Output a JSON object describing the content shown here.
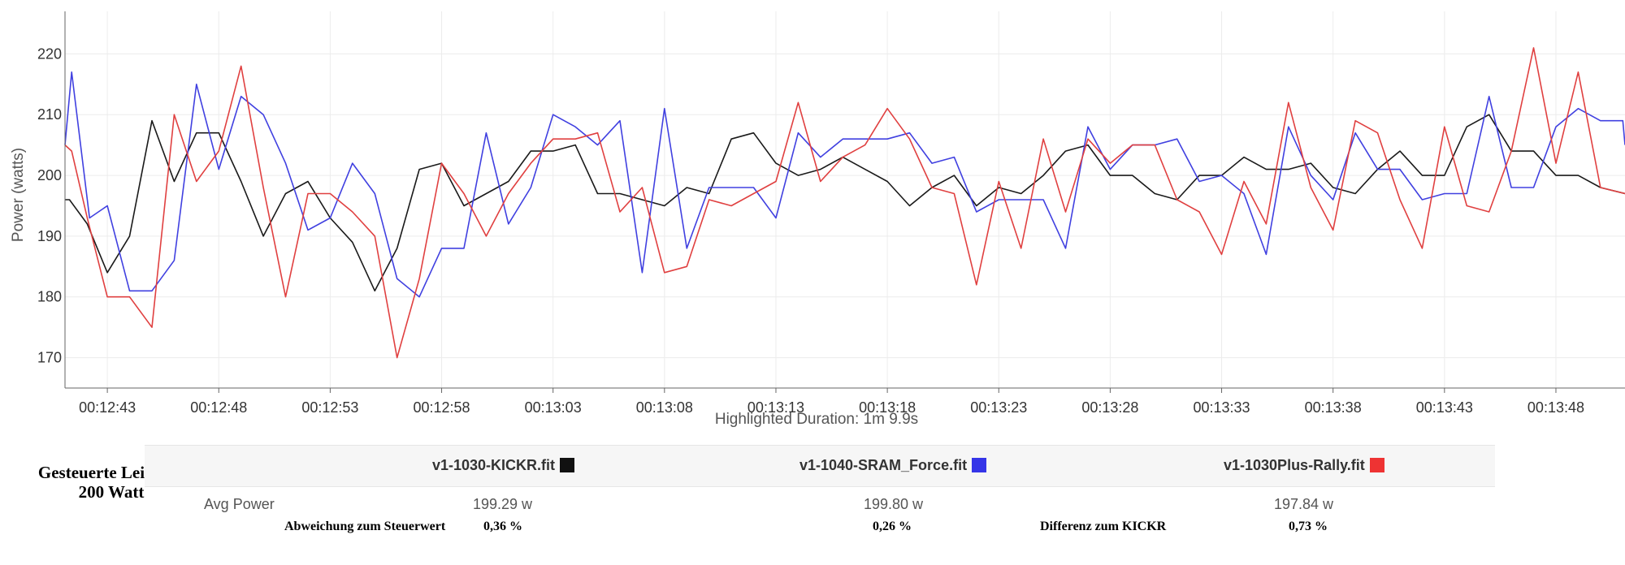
{
  "chart_data": {
    "type": "line",
    "ylabel": "Power (watts)",
    "xlabel": "Highlighted Duration: 1m 9.9s",
    "xlim": [
      764.5,
      834.5
    ],
    "ylim": [
      165,
      227
    ],
    "y_ticks": [
      170,
      180,
      190,
      200,
      210,
      220
    ],
    "x_ticks": [
      {
        "t": 766.4,
        "label": "00:12:43"
      },
      {
        "t": 771.4,
        "label": "00:12:48"
      },
      {
        "t": 776.4,
        "label": "00:12:53"
      },
      {
        "t": 781.4,
        "label": "00:12:58"
      },
      {
        "t": 786.4,
        "label": "00:13:03"
      },
      {
        "t": 791.4,
        "label": "00:13:08"
      },
      {
        "t": 796.4,
        "label": "00:13:13"
      },
      {
        "t": 801.4,
        "label": "00:13:18"
      },
      {
        "t": 806.4,
        "label": "00:13:23"
      },
      {
        "t": 811.4,
        "label": "00:13:28"
      },
      {
        "t": 816.4,
        "label": "00:13:33"
      },
      {
        "t": 821.4,
        "label": "00:13:38"
      },
      {
        "t": 826.4,
        "label": "00:13:43"
      },
      {
        "t": 831.4,
        "label": "00:13:48"
      }
    ],
    "grid": true,
    "series": [
      {
        "name": "v1-1030-KICKR.fit",
        "color": "#1a1a1a",
        "points": [
          [
            764.5,
            196
          ],
          [
            764.7,
            196
          ],
          [
            765.5,
            192
          ],
          [
            766.4,
            184
          ],
          [
            767.4,
            190
          ],
          [
            768.4,
            209
          ],
          [
            769.4,
            199
          ],
          [
            770.4,
            207
          ],
          [
            771.4,
            207
          ],
          [
            772.4,
            199
          ],
          [
            773.4,
            190
          ],
          [
            774.4,
            197
          ],
          [
            775.4,
            199
          ],
          [
            776.4,
            193
          ],
          [
            777.4,
            189
          ],
          [
            778.4,
            181
          ],
          [
            779.4,
            188
          ],
          [
            780.4,
            201
          ],
          [
            781.4,
            202
          ],
          [
            782.4,
            195
          ],
          [
            783.4,
            197
          ],
          [
            784.4,
            199
          ],
          [
            785.4,
            204
          ],
          [
            786.4,
            204
          ],
          [
            787.4,
            205
          ],
          [
            788.4,
            197
          ],
          [
            789.4,
            197
          ],
          [
            790.4,
            196
          ],
          [
            791.4,
            195
          ],
          [
            792.4,
            198
          ],
          [
            793.4,
            197
          ],
          [
            794.4,
            206
          ],
          [
            795.4,
            207
          ],
          [
            796.4,
            202
          ],
          [
            797.4,
            200
          ],
          [
            798.4,
            201
          ],
          [
            799.4,
            203
          ],
          [
            800.4,
            201
          ],
          [
            801.4,
            199
          ],
          [
            802.4,
            195
          ],
          [
            803.4,
            198
          ],
          [
            804.4,
            200
          ],
          [
            805.4,
            195
          ],
          [
            806.4,
            198
          ],
          [
            807.4,
            197
          ],
          [
            808.4,
            200
          ],
          [
            809.4,
            204
          ],
          [
            810.4,
            205
          ],
          [
            811.4,
            200
          ],
          [
            812.4,
            200
          ],
          [
            813.4,
            197
          ],
          [
            814.4,
            196
          ],
          [
            815.4,
            200
          ],
          [
            816.4,
            200
          ],
          [
            817.4,
            203
          ],
          [
            818.4,
            201
          ],
          [
            819.4,
            201
          ],
          [
            820.4,
            202
          ],
          [
            821.4,
            198
          ],
          [
            822.4,
            197
          ],
          [
            823.4,
            201
          ],
          [
            824.4,
            204
          ],
          [
            825.4,
            200
          ],
          [
            826.4,
            200
          ],
          [
            827.4,
            208
          ],
          [
            828.4,
            210
          ],
          [
            829.4,
            204
          ],
          [
            830.4,
            204
          ],
          [
            831.4,
            200
          ],
          [
            832.4,
            200
          ],
          [
            833.4,
            198
          ],
          [
            834.5,
            197
          ]
        ]
      },
      {
        "name": "v1-1040-SRAM_Force.fit",
        "color": "#4040e0",
        "points": [
          [
            764.5,
            205
          ],
          [
            764.8,
            217
          ],
          [
            765.6,
            193
          ],
          [
            766.4,
            195
          ],
          [
            767.4,
            181
          ],
          [
            768.4,
            181
          ],
          [
            769.4,
            186
          ],
          [
            770.4,
            215
          ],
          [
            771.4,
            201
          ],
          [
            772.4,
            213
          ],
          [
            773.4,
            210
          ],
          [
            774.4,
            202
          ],
          [
            775.4,
            191
          ],
          [
            776.4,
            193
          ],
          [
            777.4,
            202
          ],
          [
            778.4,
            197
          ],
          [
            779.4,
            183
          ],
          [
            780.4,
            180
          ],
          [
            781.4,
            188
          ],
          [
            782.4,
            188
          ],
          [
            783.4,
            207
          ],
          [
            784.4,
            192
          ],
          [
            785.4,
            198
          ],
          [
            786.4,
            210
          ],
          [
            787.4,
            208
          ],
          [
            788.4,
            205
          ],
          [
            789.4,
            209
          ],
          [
            790.4,
            184
          ],
          [
            791.4,
            211
          ],
          [
            792.4,
            188
          ],
          [
            793.4,
            198
          ],
          [
            794.4,
            198
          ],
          [
            795.4,
            198
          ],
          [
            796.4,
            193
          ],
          [
            797.4,
            207
          ],
          [
            798.4,
            203
          ],
          [
            799.4,
            206
          ],
          [
            800.4,
            206
          ],
          [
            801.4,
            206
          ],
          [
            802.4,
            207
          ],
          [
            803.4,
            202
          ],
          [
            804.4,
            203
          ],
          [
            805.4,
            194
          ],
          [
            806.4,
            196
          ],
          [
            807.4,
            196
          ],
          [
            808.4,
            196
          ],
          [
            809.4,
            188
          ],
          [
            810.4,
            208
          ],
          [
            811.4,
            201
          ],
          [
            812.4,
            205
          ],
          [
            813.4,
            205
          ],
          [
            814.4,
            206
          ],
          [
            815.4,
            199
          ],
          [
            816.4,
            200
          ],
          [
            817.4,
            197
          ],
          [
            818.4,
            187
          ],
          [
            819.4,
            208
          ],
          [
            820.4,
            200
          ],
          [
            821.4,
            196
          ],
          [
            822.4,
            207
          ],
          [
            823.4,
            201
          ],
          [
            824.4,
            201
          ],
          [
            825.4,
            196
          ],
          [
            826.4,
            197
          ],
          [
            827.4,
            197
          ],
          [
            828.4,
            213
          ],
          [
            829.4,
            198
          ],
          [
            830.4,
            198
          ],
          [
            831.4,
            208
          ],
          [
            832.4,
            211
          ],
          [
            833.4,
            209
          ],
          [
            834.4,
            209
          ],
          [
            834.5,
            205
          ]
        ]
      },
      {
        "name": "v1-1030Plus-Rally.fit",
        "color": "#e04040",
        "points": [
          [
            764.5,
            205
          ],
          [
            764.8,
            204
          ],
          [
            765.5,
            193
          ],
          [
            766.4,
            180
          ],
          [
            767.4,
            180
          ],
          [
            768.4,
            175
          ],
          [
            769.4,
            210
          ],
          [
            770.4,
            199
          ],
          [
            771.4,
            204
          ],
          [
            772.4,
            218
          ],
          [
            773.4,
            198
          ],
          [
            774.4,
            180
          ],
          [
            775.4,
            197
          ],
          [
            776.4,
            197
          ],
          [
            777.4,
            194
          ],
          [
            778.4,
            190
          ],
          [
            779.4,
            170
          ],
          [
            780.4,
            183
          ],
          [
            781.4,
            202
          ],
          [
            782.4,
            197
          ],
          [
            783.4,
            190
          ],
          [
            784.4,
            197
          ],
          [
            785.4,
            202
          ],
          [
            786.4,
            206
          ],
          [
            787.4,
            206
          ],
          [
            788.4,
            207
          ],
          [
            789.4,
            194
          ],
          [
            790.4,
            198
          ],
          [
            791.4,
            184
          ],
          [
            792.4,
            185
          ],
          [
            793.4,
            196
          ],
          [
            794.4,
            195
          ],
          [
            795.4,
            197
          ],
          [
            796.4,
            199
          ],
          [
            797.4,
            212
          ],
          [
            798.4,
            199
          ],
          [
            799.4,
            203
          ],
          [
            800.4,
            205
          ],
          [
            801.4,
            211
          ],
          [
            802.4,
            206
          ],
          [
            803.4,
            198
          ],
          [
            804.4,
            197
          ],
          [
            805.4,
            182
          ],
          [
            806.4,
            199
          ],
          [
            807.4,
            188
          ],
          [
            808.4,
            206
          ],
          [
            809.4,
            194
          ],
          [
            810.4,
            206
          ],
          [
            811.4,
            202
          ],
          [
            812.4,
            205
          ],
          [
            813.4,
            205
          ],
          [
            814.4,
            196
          ],
          [
            815.4,
            194
          ],
          [
            816.4,
            187
          ],
          [
            817.4,
            199
          ],
          [
            818.4,
            192
          ],
          [
            819.4,
            212
          ],
          [
            820.4,
            198
          ],
          [
            821.4,
            191
          ],
          [
            822.4,
            209
          ],
          [
            823.4,
            207
          ],
          [
            824.4,
            196
          ],
          [
            825.4,
            188
          ],
          [
            826.4,
            208
          ],
          [
            827.4,
            195
          ],
          [
            828.4,
            194
          ],
          [
            829.4,
            204
          ],
          [
            830.4,
            221
          ],
          [
            831.4,
            202
          ],
          [
            832.4,
            217
          ],
          [
            833.4,
            198
          ],
          [
            834.5,
            197
          ]
        ]
      }
    ]
  },
  "summary": {
    "controlled_label_line1": "Gesteuerte Leistung",
    "controlled_label_line2": "200 Watt",
    "files": [
      {
        "name": "v1-1030-KICKR.fit",
        "color": "#111111",
        "avg_power": "199.29 w"
      },
      {
        "name": "v1-1040-SRAM_Force.fit",
        "color": "#3535e8",
        "avg_power": "199.80 w"
      },
      {
        "name": "v1-1030Plus-Rally.fit",
        "color": "#ee3333",
        "avg_power": "197.84 w"
      }
    ],
    "avg_power_label": "Avg Power",
    "deviation_label": "Abweichung zum Steuerwert",
    "deviation_kickr": "0,36 %",
    "deviation_sram": "0,26 %",
    "difference_label": "Differenz zum KICKR",
    "difference_rally": "0,73 %"
  }
}
